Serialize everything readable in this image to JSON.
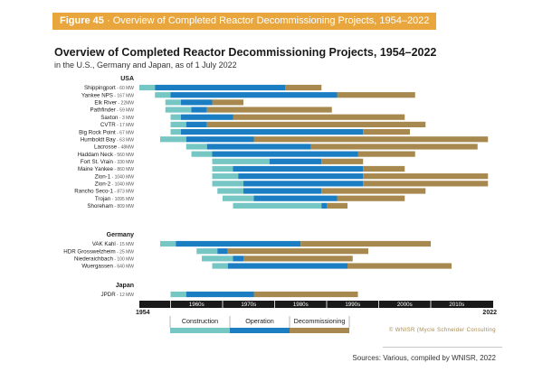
{
  "header": {
    "figure_label": "Figure 45",
    "title": "Overview of Completed Reactor Decommissioning Projects, 1954–2022"
  },
  "chart_data": {
    "type": "bar",
    "title": "Overview of Completed Reactor Decommissioning Projects, 1954–2022",
    "subtitle": "in the U.S., Germany and Japan, as of 1 July 2022",
    "x_range": [
      1954,
      2022
    ],
    "x_start_label": "1954",
    "x_end_label": "2022",
    "decades": [
      "1960s",
      "1970s",
      "1980s",
      "1990s",
      "2000s",
      "2010s"
    ],
    "phases": [
      "Construction",
      "Operation",
      "Decommissioning"
    ],
    "colors": {
      "Construction": "#76c7c4",
      "Operation": "#1b7ec3",
      "Decommissioning": "#a7894f",
      "axis": "#1a1a1a",
      "header": "#e8a63c"
    },
    "groups": [
      {
        "name": "USA",
        "reactors": [
          {
            "name": "Shippingport",
            "capacity": "60 MW",
            "construction": [
              1954,
              1957
            ],
            "operation": [
              1957,
              1982
            ],
            "decommissioning": [
              1982,
              1989
            ]
          },
          {
            "name": "Yankee NPS",
            "capacity": "167 MW",
            "construction": [
              1957,
              1960
            ],
            "operation": [
              1960,
              1992
            ],
            "decommissioning": [
              1992,
              2007
            ]
          },
          {
            "name": "Elk River",
            "capacity": "22MW",
            "construction": [
              1959,
              1962
            ],
            "operation": [
              1962,
              1968
            ],
            "decommissioning": [
              1968,
              1974
            ]
          },
          {
            "name": "Pathfinder",
            "capacity": "59 MW",
            "construction": [
              1959,
              1964
            ],
            "operation": [
              1964,
              1967
            ],
            "decommissioning": [
              1967,
              1991
            ]
          },
          {
            "name": "Saxton",
            "capacity": "3 MW",
            "construction": [
              1960,
              1962
            ],
            "operation": [
              1962,
              1972
            ],
            "decommissioning": [
              1972,
              2005
            ]
          },
          {
            "name": "CVTR",
            "capacity": "17 MW",
            "construction": [
              1960,
              1963
            ],
            "operation": [
              1963,
              1967
            ],
            "decommissioning": [
              1967,
              2009
            ]
          },
          {
            "name": "Big Rock Point",
            "capacity": "67 MW",
            "construction": [
              1960,
              1962
            ],
            "operation": [
              1962,
              1997
            ],
            "decommissioning": [
              1997,
              2006
            ]
          },
          {
            "name": "Humboldt Bay",
            "capacity": "63 MW",
            "construction": [
              1958,
              1963
            ],
            "operation": [
              1963,
              1976
            ],
            "decommissioning": [
              1976,
              2021
            ]
          },
          {
            "name": "Lacrosse",
            "capacity": "48MW",
            "construction": [
              1963,
              1967
            ],
            "operation": [
              1967,
              1987
            ],
            "decommissioning": [
              1987,
              2019
            ]
          },
          {
            "name": "Haddam Neck",
            "capacity": "560 MW",
            "construction": [
              1964,
              1968
            ],
            "operation": [
              1968,
              1996
            ],
            "decommissioning": [
              1996,
              2007
            ]
          },
          {
            "name": "Fort St. Vrain",
            "capacity": "330 MW",
            "construction": [
              1968,
              1979
            ],
            "operation": [
              1979,
              1989
            ],
            "decommissioning": [
              1989,
              1997
            ]
          },
          {
            "name": "Maine Yankee",
            "capacity": "860 MW",
            "construction": [
              1968,
              1972
            ],
            "operation": [
              1972,
              1997
            ],
            "decommissioning": [
              1997,
              2005
            ]
          },
          {
            "name": "Zion-1",
            "capacity": "1040 MW",
            "construction": [
              1968,
              1973
            ],
            "operation": [
              1973,
              1997
            ],
            "decommissioning": [
              1997,
              2021
            ]
          },
          {
            "name": "Zion-2",
            "capacity": "1040 MW",
            "construction": [
              1968,
              1974
            ],
            "operation": [
              1974,
              1997
            ],
            "decommissioning": [
              1997,
              2021
            ]
          },
          {
            "name": "Rancho Seco-1",
            "capacity": "873 MW",
            "construction": [
              1969,
              1974
            ],
            "operation": [
              1974,
              1989
            ],
            "decommissioning": [
              1989,
              2009
            ]
          },
          {
            "name": "Trojan",
            "capacity": "1095 MW",
            "construction": [
              1970,
              1976
            ],
            "operation": [
              1976,
              1992
            ],
            "decommissioning": [
              1992,
              2005
            ]
          },
          {
            "name": "Shoreham",
            "capacity": "809 MW",
            "construction": [
              1972,
              1989
            ],
            "operation": [
              1989,
              1990
            ],
            "decommissioning": [
              1990,
              1994
            ]
          }
        ]
      },
      {
        "name": "Germany",
        "reactors": [
          {
            "name": "VAK Kahl",
            "capacity": "15 MW",
            "construction": [
              1958,
              1961
            ],
            "operation": [
              1961,
              1985
            ],
            "decommissioning": [
              1985,
              2010
            ]
          },
          {
            "name": "HDR Grosswelzheim",
            "capacity": "25 MW",
            "construction": [
              1965,
              1969
            ],
            "operation": [
              1969,
              1971
            ],
            "decommissioning": [
              1971,
              1998
            ]
          },
          {
            "name": "Niederaichbach",
            "capacity": "100 MW",
            "construction": [
              1966,
              1972
            ],
            "operation": [
              1972,
              1974
            ],
            "decommissioning": [
              1974,
              1995
            ]
          },
          {
            "name": "Wuergassen",
            "capacity": "640 MW",
            "construction": [
              1968,
              1971
            ],
            "operation": [
              1971,
              1994
            ],
            "decommissioning": [
              1994,
              2014
            ]
          }
        ]
      },
      {
        "name": "Japan",
        "reactors": [
          {
            "name": "JPDR",
            "capacity": "12 MW",
            "construction": [
              1960,
              1963
            ],
            "operation": [
              1963,
              1976
            ],
            "decommissioning": [
              1976,
              1996
            ]
          }
        ]
      }
    ]
  },
  "watermark": "© WNISR (Mycle Schneider Consulting",
  "sources": "Sources: Various, compiled by WNISR, 2022"
}
